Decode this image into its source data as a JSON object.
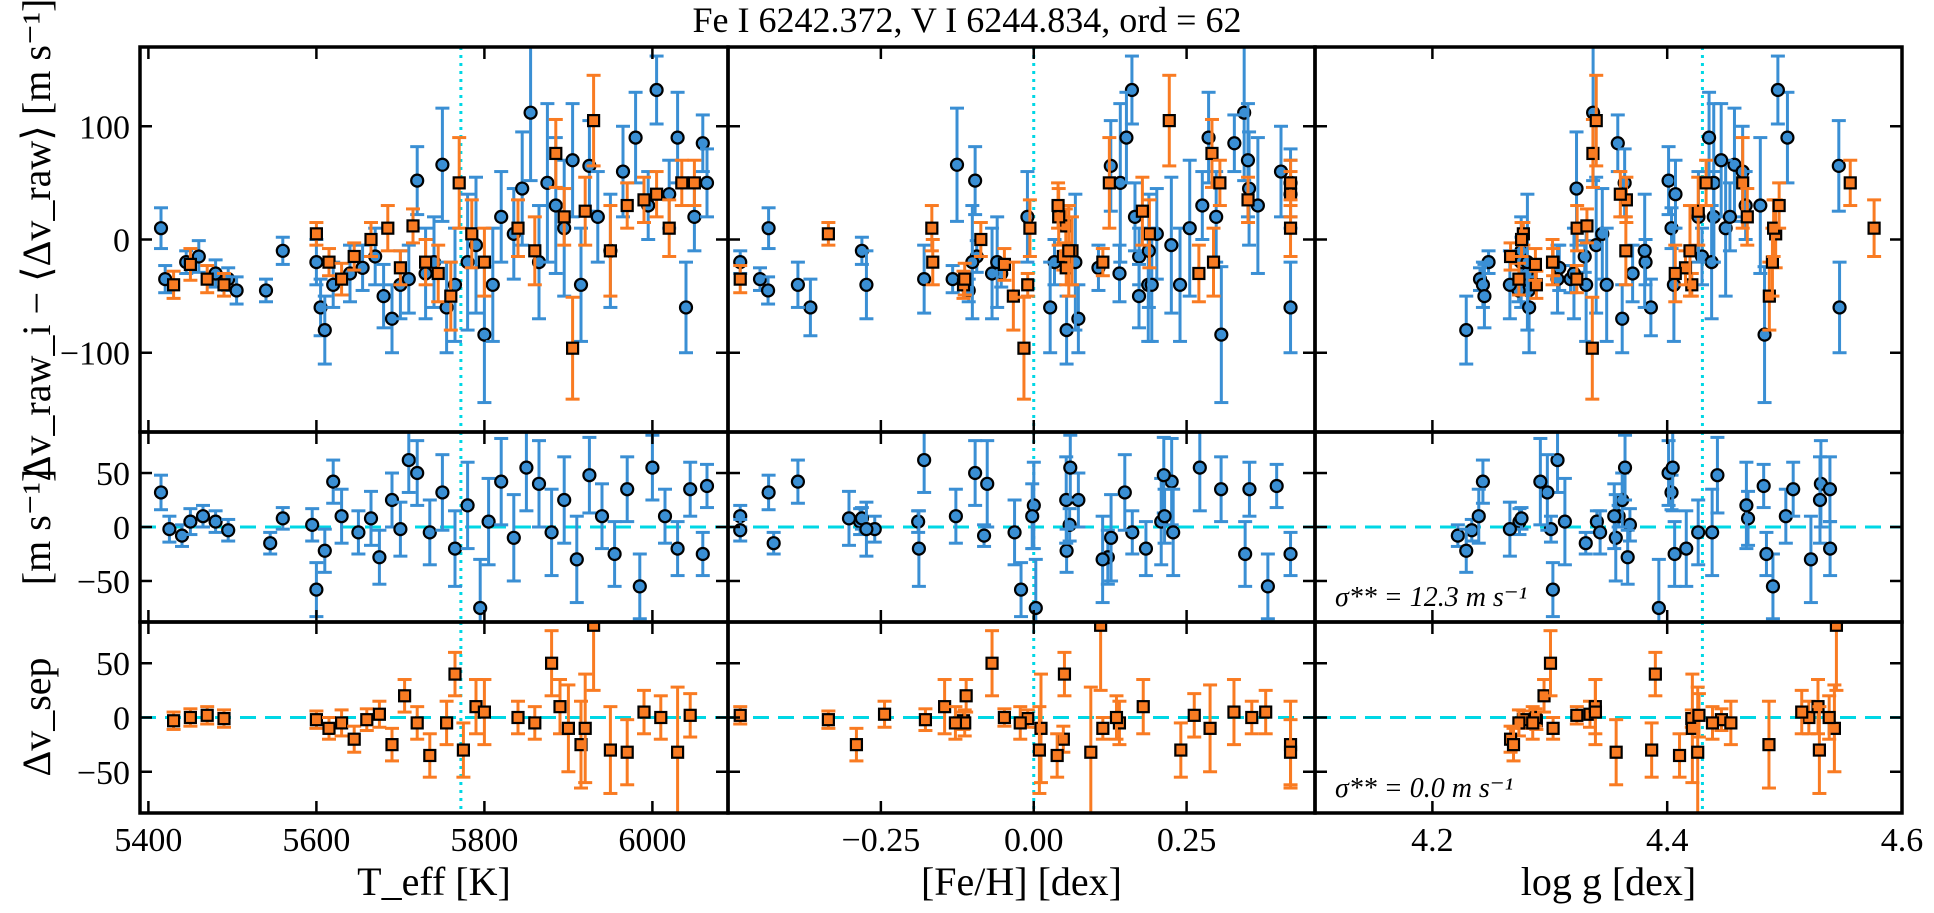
{
  "chart_data": {
    "type": "scatter",
    "title": "Fe I 6242.372, V I 6244.834, ord = 62",
    "colors": {
      "blue": "#3a8fd4",
      "orange": "#f97b22",
      "reference": "#00d7e5",
      "frame": "#000000"
    },
    "columns": [
      {
        "xlabel": "T_eff [K]",
        "xlim": [
          5390,
          6090
        ],
        "ticks": [
          5400,
          5600,
          5800,
          6000
        ],
        "tick_labels": [
          "5400",
          "5600",
          "5800",
          "6000"
        ],
        "reference_x": 5772
      },
      {
        "xlabel": "[Fe/H] [dex]",
        "xlim": [
          -0.5,
          0.46
        ],
        "ticks": [
          -0.25,
          0.0,
          0.25
        ],
        "tick_labels": [
          "−0.25",
          "0.00",
          "0.25"
        ],
        "reference_x": 0.0
      },
      {
        "xlabel": "log g [dex]",
        "xlim": [
          4.1,
          4.6
        ],
        "ticks": [
          4.2,
          4.4,
          4.6
        ],
        "tick_labels": [
          "4.2",
          "4.4",
          "4.6"
        ],
        "reference_x": 4.43
      }
    ],
    "rows": [
      {
        "ylabel": "Δv_raw_i − ⟨Δv_raw⟩ [m s⁻¹]",
        "ylim": [
          -170,
          170
        ],
        "ticks": [
          -100,
          0,
          100
        ],
        "tick_labels": [
          "−100",
          "0",
          "100"
        ],
        "reference_y": null,
        "annotation": null
      },
      {
        "ylabel": "[m s⁻¹]",
        "ylim": [
          -88,
          88
        ],
        "ticks": [
          -50,
          0,
          50
        ],
        "tick_labels": [
          "−50",
          "0",
          "50"
        ],
        "reference_y": 0,
        "annotation": "σ** = 12.3 m s⁻¹"
      },
      {
        "ylabel": "Δv_sep",
        "ylim": [
          -88,
          88
        ],
        "ticks": [
          -50,
          0,
          50
        ],
        "tick_labels": [
          "−50",
          "0",
          "50"
        ],
        "reference_y": 0,
        "annotation": "σ** = 0.0 m s⁻¹"
      }
    ],
    "series": [
      {
        "name": "raw blue (circles)",
        "row": 0,
        "color": "blue",
        "marker": "circle",
        "points": [
          [
            5415,
            10,
            18
          ],
          [
            5420,
            -35,
            12
          ],
          [
            5445,
            -20,
            10
          ],
          [
            5460,
            -15,
            14
          ],
          [
            5480,
            -30,
            12
          ],
          [
            5495,
            -35,
            10
          ],
          [
            5505,
            -45,
            12
          ],
          [
            5540,
            -45,
            10
          ],
          [
            5560,
            -10,
            12
          ],
          [
            5600,
            -20,
            20
          ],
          [
            5605,
            -60,
            25
          ],
          [
            5610,
            -80,
            30
          ],
          [
            5620,
            -40,
            20
          ],
          [
            5640,
            -30,
            25
          ],
          [
            5655,
            -25,
            20
          ],
          [
            5670,
            -15,
            25
          ],
          [
            5680,
            -50,
            28
          ],
          [
            5690,
            -70,
            30
          ],
          [
            5700,
            -40,
            30
          ],
          [
            5710,
            -35,
            30
          ],
          [
            5720,
            52,
            30
          ],
          [
            5730,
            -30,
            40
          ],
          [
            5740,
            -20,
            40
          ],
          [
            5750,
            66,
            50
          ],
          [
            5755,
            -60,
            40
          ],
          [
            5765,
            -40,
            50
          ],
          [
            5780,
            -20,
            60
          ],
          [
            5790,
            -5,
            60
          ],
          [
            5800,
            -84,
            60
          ],
          [
            5810,
            -40,
            50
          ],
          [
            5820,
            20,
            40
          ],
          [
            5835,
            5,
            40
          ],
          [
            5845,
            45,
            50
          ],
          [
            5855,
            112,
            60
          ],
          [
            5865,
            -20,
            50
          ],
          [
            5875,
            50,
            70
          ],
          [
            5885,
            30,
            60
          ],
          [
            5895,
            10,
            60
          ],
          [
            5905,
            70,
            50
          ],
          [
            5915,
            -40,
            50
          ],
          [
            5925,
            65,
            40
          ],
          [
            5935,
            20,
            40
          ],
          [
            5950,
            -10,
            50
          ],
          [
            5965,
            60,
            40
          ],
          [
            5980,
            90,
            40
          ],
          [
            5995,
            30,
            30
          ],
          [
            6005,
            132,
            30
          ],
          [
            6020,
            40,
            30
          ],
          [
            6030,
            90,
            40
          ],
          [
            6040,
            -60,
            40
          ],
          [
            6050,
            20,
            30
          ],
          [
            6060,
            85,
            25
          ],
          [
            6065,
            50,
            30
          ]
        ]
      },
      {
        "name": "raw orange (squares)",
        "row": 0,
        "color": "orange",
        "marker": "square",
        "points": [
          [
            5430,
            -40,
            12
          ],
          [
            5450,
            -22,
            14
          ],
          [
            5470,
            -35,
            12
          ],
          [
            5490,
            -40,
            10
          ],
          [
            5600,
            5,
            10
          ],
          [
            5615,
            -20,
            12
          ],
          [
            5630,
            -35,
            14
          ],
          [
            5645,
            -15,
            12
          ],
          [
            5665,
            0,
            15
          ],
          [
            5685,
            10,
            20
          ],
          [
            5700,
            -25,
            15
          ],
          [
            5715,
            12,
            15
          ],
          [
            5730,
            -20,
            20
          ],
          [
            5745,
            -30,
            25
          ],
          [
            5760,
            -50,
            30
          ],
          [
            5770,
            50,
            40
          ],
          [
            5785,
            5,
            30
          ],
          [
            5800,
            -20,
            30
          ],
          [
            5840,
            10,
            25
          ],
          [
            5860,
            -10,
            30
          ],
          [
            5885,
            76,
            30
          ],
          [
            5895,
            20,
            25
          ],
          [
            5905,
            -96,
            45
          ],
          [
            5920,
            25,
            30
          ],
          [
            5930,
            105,
            40
          ],
          [
            5950,
            -10,
            40
          ],
          [
            5970,
            30,
            20
          ],
          [
            5990,
            35,
            20
          ],
          [
            6005,
            40,
            20
          ],
          [
            6020,
            10,
            25
          ],
          [
            6035,
            50,
            20
          ],
          [
            6050,
            50,
            20
          ]
        ]
      },
      {
        "name": "sep blue (circles)",
        "row": 1,
        "color": "blue",
        "marker": "circle",
        "points": [
          [
            5415,
            32,
            16
          ],
          [
            5425,
            -2,
            12
          ],
          [
            5440,
            -8,
            10
          ],
          [
            5450,
            5,
            12
          ],
          [
            5465,
            10,
            10
          ],
          [
            5480,
            5,
            10
          ],
          [
            5495,
            -3,
            10
          ],
          [
            5545,
            -15,
            10
          ],
          [
            5560,
            8,
            10
          ],
          [
            5595,
            2,
            15
          ],
          [
            5600,
            -58,
            25
          ],
          [
            5610,
            -22,
            20
          ],
          [
            5620,
            42,
            20
          ],
          [
            5630,
            10,
            25
          ],
          [
            5650,
            -5,
            20
          ],
          [
            5665,
            8,
            25
          ],
          [
            5675,
            -28,
            25
          ],
          [
            5690,
            25,
            25
          ],
          [
            5700,
            -2,
            25
          ],
          [
            5710,
            62,
            30
          ],
          [
            5720,
            50,
            30
          ],
          [
            5735,
            -5,
            30
          ],
          [
            5750,
            32,
            35
          ],
          [
            5765,
            -20,
            35
          ],
          [
            5780,
            20,
            40
          ],
          [
            5795,
            -75,
            45
          ],
          [
            5805,
            5,
            40
          ],
          [
            5820,
            42,
            40
          ],
          [
            5835,
            -10,
            40
          ],
          [
            5850,
            55,
            40
          ],
          [
            5865,
            40,
            40
          ],
          [
            5880,
            -5,
            40
          ],
          [
            5895,
            25,
            40
          ],
          [
            5910,
            -30,
            40
          ],
          [
            5925,
            48,
            35
          ],
          [
            5940,
            10,
            30
          ],
          [
            5955,
            -25,
            30
          ],
          [
            5970,
            35,
            30
          ],
          [
            5985,
            -55,
            30
          ],
          [
            6000,
            55,
            30
          ],
          [
            6015,
            10,
            25
          ],
          [
            6030,
            -20,
            25
          ],
          [
            6045,
            35,
            25
          ],
          [
            6060,
            -25,
            20
          ],
          [
            6065,
            38,
            20
          ]
        ]
      },
      {
        "name": "sep orange (squares)",
        "row": 2,
        "color": "orange",
        "marker": "square",
        "points": [
          [
            5430,
            -3,
            8
          ],
          [
            5450,
            0,
            8
          ],
          [
            5470,
            2,
            8
          ],
          [
            5490,
            -1,
            8
          ],
          [
            5600,
            -2,
            8
          ],
          [
            5615,
            -10,
            10
          ],
          [
            5630,
            -5,
            12
          ],
          [
            5645,
            -20,
            12
          ],
          [
            5660,
            -2,
            10
          ],
          [
            5675,
            3,
            12
          ],
          [
            5690,
            -25,
            15
          ],
          [
            5705,
            20,
            15
          ],
          [
            5720,
            -5,
            15
          ],
          [
            5735,
            -35,
            20
          ],
          [
            5755,
            -5,
            20
          ],
          [
            5765,
            40,
            20
          ],
          [
            5775,
            -30,
            25
          ],
          [
            5790,
            10,
            25
          ],
          [
            5800,
            5,
            30
          ],
          [
            5840,
            0,
            15
          ],
          [
            5860,
            -5,
            15
          ],
          [
            5880,
            50,
            30
          ],
          [
            5890,
            10,
            25
          ],
          [
            5900,
            -10,
            40
          ],
          [
            5915,
            -25,
            40
          ],
          [
            5920,
            -10,
            50
          ],
          [
            5930,
            85,
            60
          ],
          [
            5950,
            -30,
            40
          ],
          [
            5970,
            -32,
            30
          ],
          [
            5990,
            5,
            20
          ],
          [
            6010,
            0,
            20
          ],
          [
            6030,
            -32,
            60
          ],
          [
            6045,
            2,
            20
          ]
        ]
      }
    ]
  }
}
